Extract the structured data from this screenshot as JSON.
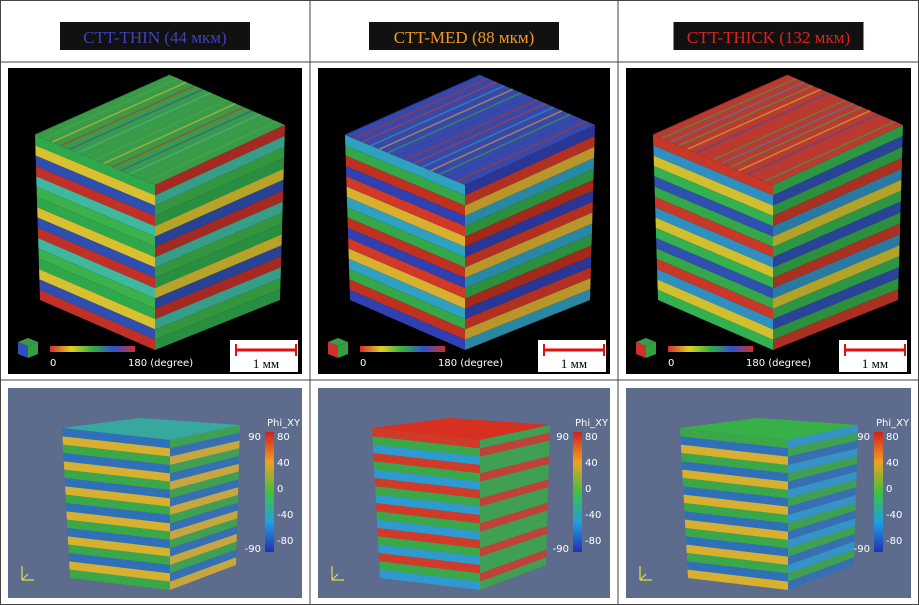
{
  "columns": [
    {
      "header": "CTT-THIN (44 мкм)",
      "colorbar_min": "0",
      "colorbar_max": "180 (degree)",
      "scale_bar": "1 мм",
      "legend_title": "Phi_XY",
      "legend_range": [
        "90",
        "-90"
      ],
      "legend_ticks": [
        "80",
        "40",
        "0",
        "-40",
        "-80"
      ]
    },
    {
      "header": "CTT-MED (88 мкм)",
      "colorbar_min": "0",
      "colorbar_max": "180 (degree)",
      "scale_bar": "1 мм",
      "legend_title": "Phi_XY",
      "legend_range": [
        "90",
        "-90"
      ],
      "legend_ticks": [
        "80",
        "40",
        "0",
        "-40",
        "-80"
      ]
    },
    {
      "header": "CTT-THICK (132 мкм)",
      "colorbar_min": "0",
      "colorbar_max": "180 (degree)",
      "scale_bar": "1 мм",
      "legend_title": "Phi_XY",
      "legend_range": [
        "90",
        "-90"
      ],
      "legend_ticks": [
        "80",
        "40",
        "0",
        "-40",
        "-80"
      ]
    }
  ]
}
